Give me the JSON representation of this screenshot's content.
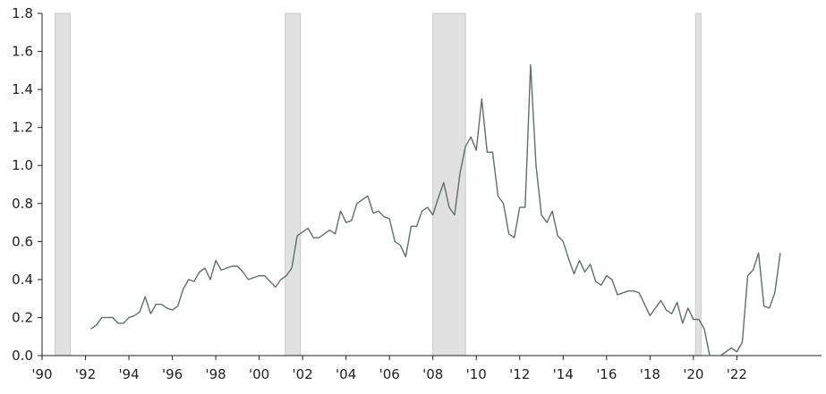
{
  "chart_data": {
    "type": "line",
    "title": "",
    "xlabel": "",
    "ylabel": "",
    "xlim": [
      1990,
      2025.9
    ],
    "ylim": [
      0,
      1.8
    ],
    "grid": false,
    "legend": "none",
    "x_ticks": [
      {
        "value": 1990,
        "label": "'90"
      },
      {
        "value": 1992,
        "label": "'92"
      },
      {
        "value": 1994,
        "label": "'94"
      },
      {
        "value": 1996,
        "label": "'96"
      },
      {
        "value": 1998,
        "label": "'98"
      },
      {
        "value": 2000,
        "label": "'00"
      },
      {
        "value": 2002,
        "label": "'02"
      },
      {
        "value": 2004,
        "label": "'04"
      },
      {
        "value": 2006,
        "label": "'06"
      },
      {
        "value": 2008,
        "label": "'08"
      },
      {
        "value": 2010,
        "label": "'10"
      },
      {
        "value": 2012,
        "label": "'12"
      },
      {
        "value": 2014,
        "label": "'14"
      },
      {
        "value": 2016,
        "label": "'16"
      },
      {
        "value": 2018,
        "label": "'18"
      },
      {
        "value": 2020,
        "label": "'20"
      },
      {
        "value": 2022,
        "label": "'22"
      }
    ],
    "y_ticks": [
      {
        "value": 0.0,
        "label": "0.0"
      },
      {
        "value": 0.2,
        "label": "0.2"
      },
      {
        "value": 0.4,
        "label": "0.4"
      },
      {
        "value": 0.6,
        "label": "0.6"
      },
      {
        "value": 0.8,
        "label": "0.8"
      },
      {
        "value": 1.0,
        "label": "1.0"
      },
      {
        "value": 1.2,
        "label": "1.2"
      },
      {
        "value": 1.4,
        "label": "1.4"
      },
      {
        "value": 1.6,
        "label": "1.6"
      },
      {
        "value": 1.8,
        "label": "1.8"
      }
    ],
    "shaded_periods": [
      {
        "start": 1990.6,
        "end": 1991.3
      },
      {
        "start": 2001.2,
        "end": 2001.9
      },
      {
        "start": 2008.0,
        "end": 2009.5
      },
      {
        "start": 2020.1,
        "end": 2020.35
      }
    ],
    "series": [
      {
        "color": "#5f6f6c",
        "points": [
          [
            1992.25,
            0.14
          ],
          [
            1992.5,
            0.16
          ],
          [
            1992.75,
            0.2
          ],
          [
            1993.0,
            0.2
          ],
          [
            1993.25,
            0.2
          ],
          [
            1993.5,
            0.17
          ],
          [
            1993.75,
            0.17
          ],
          [
            1994.0,
            0.2
          ],
          [
            1994.25,
            0.21
          ],
          [
            1994.5,
            0.23
          ],
          [
            1994.75,
            0.31
          ],
          [
            1995.0,
            0.22
          ],
          [
            1995.25,
            0.27
          ],
          [
            1995.5,
            0.27
          ],
          [
            1995.75,
            0.25
          ],
          [
            1996.0,
            0.24
          ],
          [
            1996.25,
            0.26
          ],
          [
            1996.5,
            0.35
          ],
          [
            1996.75,
            0.4
          ],
          [
            1997.0,
            0.39
          ],
          [
            1997.25,
            0.44
          ],
          [
            1997.5,
            0.46
          ],
          [
            1997.75,
            0.4
          ],
          [
            1998.0,
            0.5
          ],
          [
            1998.25,
            0.45
          ],
          [
            1998.5,
            0.46
          ],
          [
            1998.75,
            0.47
          ],
          [
            1999.0,
            0.47
          ],
          [
            1999.25,
            0.44
          ],
          [
            1999.5,
            0.4
          ],
          [
            1999.75,
            0.41
          ],
          [
            2000.0,
            0.42
          ],
          [
            2000.25,
            0.42
          ],
          [
            2000.5,
            0.39
          ],
          [
            2000.75,
            0.36
          ],
          [
            2001.0,
            0.4
          ],
          [
            2001.25,
            0.42
          ],
          [
            2001.5,
            0.46
          ],
          [
            2001.75,
            0.63
          ],
          [
            2002.0,
            0.65
          ],
          [
            2002.25,
            0.67
          ],
          [
            2002.5,
            0.62
          ],
          [
            2002.75,
            0.62
          ],
          [
            2003.0,
            0.64
          ],
          [
            2003.25,
            0.66
          ],
          [
            2003.5,
            0.64
          ],
          [
            2003.75,
            0.76
          ],
          [
            2004.0,
            0.7
          ],
          [
            2004.25,
            0.71
          ],
          [
            2004.5,
            0.8
          ],
          [
            2004.75,
            0.82
          ],
          [
            2005.0,
            0.84
          ],
          [
            2005.25,
            0.75
          ],
          [
            2005.5,
            0.76
          ],
          [
            2005.75,
            0.73
          ],
          [
            2006.0,
            0.72
          ],
          [
            2006.25,
            0.6
          ],
          [
            2006.5,
            0.58
          ],
          [
            2006.75,
            0.52
          ],
          [
            2007.0,
            0.68
          ],
          [
            2007.25,
            0.68
          ],
          [
            2007.5,
            0.76
          ],
          [
            2007.75,
            0.78
          ],
          [
            2008.0,
            0.74
          ],
          [
            2008.25,
            0.83
          ],
          [
            2008.5,
            0.91
          ],
          [
            2008.75,
            0.78
          ],
          [
            2009.0,
            0.74
          ],
          [
            2009.25,
            0.96
          ],
          [
            2009.5,
            1.1
          ],
          [
            2009.75,
            1.15
          ],
          [
            2010.0,
            1.08
          ],
          [
            2010.25,
            1.35
          ],
          [
            2010.5,
            1.07
          ],
          [
            2010.75,
            1.07
          ],
          [
            2011.0,
            0.84
          ],
          [
            2011.25,
            0.8
          ],
          [
            2011.5,
            0.64
          ],
          [
            2011.75,
            0.62
          ],
          [
            2012.0,
            0.78
          ],
          [
            2012.25,
            0.78
          ],
          [
            2012.5,
            1.53
          ],
          [
            2012.75,
            1.0
          ],
          [
            2013.0,
            0.74
          ],
          [
            2013.25,
            0.7
          ],
          [
            2013.5,
            0.76
          ],
          [
            2013.75,
            0.63
          ],
          [
            2014.0,
            0.6
          ],
          [
            2014.25,
            0.51
          ],
          [
            2014.5,
            0.43
          ],
          [
            2014.75,
            0.5
          ],
          [
            2015.0,
            0.44
          ],
          [
            2015.25,
            0.48
          ],
          [
            2015.5,
            0.39
          ],
          [
            2015.75,
            0.37
          ],
          [
            2016.0,
            0.42
          ],
          [
            2016.25,
            0.4
          ],
          [
            2016.5,
            0.32
          ],
          [
            2016.75,
            0.33
          ],
          [
            2017.0,
            0.34
          ],
          [
            2017.25,
            0.34
          ],
          [
            2017.5,
            0.33
          ],
          [
            2017.75,
            0.27
          ],
          [
            2018.0,
            0.21
          ],
          [
            2018.25,
            0.25
          ],
          [
            2018.5,
            0.29
          ],
          [
            2018.75,
            0.24
          ],
          [
            2019.0,
            0.22
          ],
          [
            2019.25,
            0.28
          ],
          [
            2019.5,
            0.17
          ],
          [
            2019.75,
            0.25
          ],
          [
            2020.0,
            0.19
          ],
          [
            2020.25,
            0.19
          ],
          [
            2020.5,
            0.14
          ],
          [
            2020.75,
            0.0
          ],
          null,
          [
            2021.25,
            0.0
          ],
          [
            2021.5,
            0.02
          ],
          [
            2021.75,
            0.04
          ],
          [
            2022.0,
            0.02
          ],
          [
            2022.25,
            0.07
          ],
          [
            2022.5,
            0.42
          ],
          [
            2022.75,
            0.45
          ],
          [
            2023.0,
            0.54
          ],
          [
            2023.25,
            0.26
          ],
          [
            2023.5,
            0.25
          ],
          [
            2023.75,
            0.33
          ],
          [
            2024.0,
            0.54
          ]
        ]
      }
    ]
  }
}
